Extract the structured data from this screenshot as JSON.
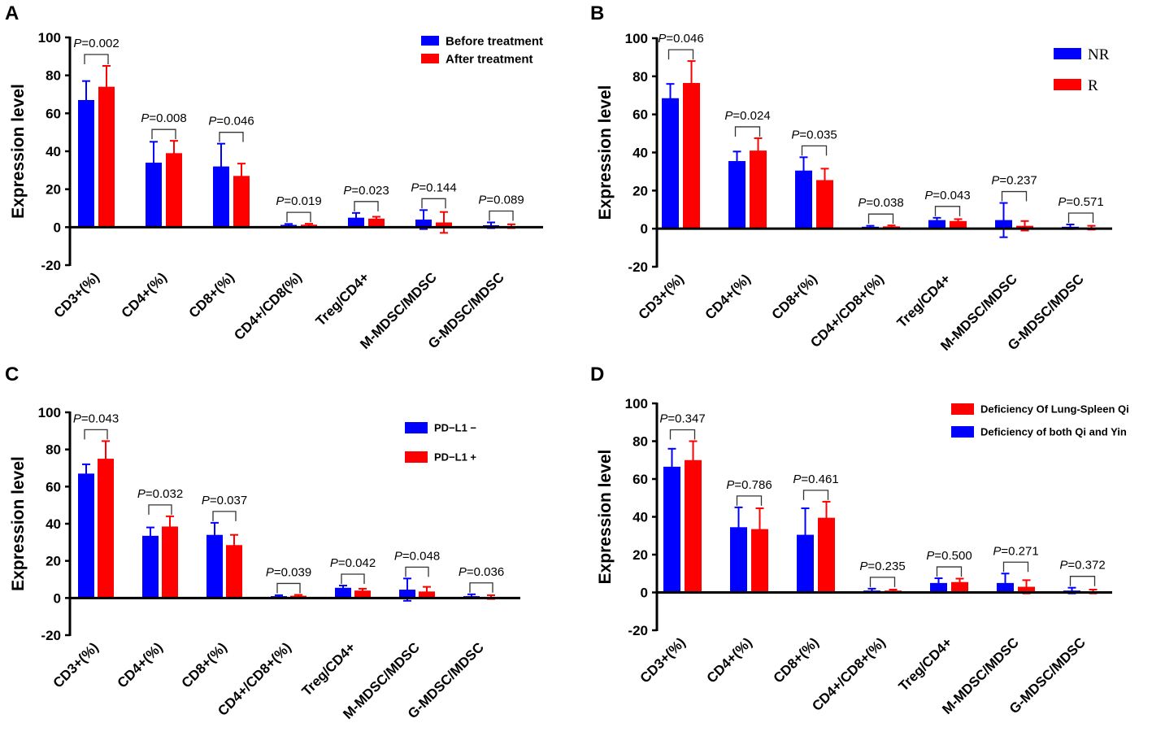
{
  "panels": [
    {
      "letter": "A",
      "ylabel": "Expression level",
      "legend_style": "bold",
      "legend": [
        {
          "label": "Before treatment",
          "color": "#0000ff"
        },
        {
          "label": "After treatment",
          "color": "#ff0000"
        }
      ],
      "p_prefix": "P",
      "p_values": [
        "=0.002",
        "=0.008",
        "=0.046",
        "=0.019",
        "=0.023",
        "=0.144",
        "=0.089"
      ]
    },
    {
      "letter": "B",
      "ylabel": "Expression level",
      "legend_style": "serif",
      "legend": [
        {
          "label": "NR",
          "color": "#0000ff"
        },
        {
          "label": "R",
          "color": "#ff0000"
        }
      ],
      "p_prefix": "P",
      "p_values": [
        "=0.046",
        "=0.024",
        "=0.035",
        "=0.038",
        "=0.043",
        "=0.237",
        "=0.571"
      ]
    },
    {
      "letter": "C",
      "ylabel": "Expression level",
      "legend_style": "small",
      "legend": [
        {
          "label": "PD−L1 −",
          "color": "#0000ff"
        },
        {
          "label": "PD−L1 +",
          "color": "#ff0000"
        }
      ],
      "p_prefix": "P",
      "p_values": [
        "=0.043",
        "=0.032",
        "=0.037",
        "=0.039",
        "=0.042",
        "=0.048",
        "=0.036"
      ]
    },
    {
      "letter": "D",
      "ylabel": "Expression level",
      "legend_style": "bold",
      "legend": [
        {
          "label": "Deficiency Of Lung-Spleen Qi",
          "color": "#ff0000"
        },
        {
          "label": "Deficiency of both Qi and Yin",
          "color": "#0000ff"
        }
      ],
      "p_prefix": "P",
      "p_values": [
        "=0.347",
        "=0.786",
        "=0.461",
        "=0.235",
        "=0.500",
        "=0.271",
        "=0.372"
      ]
    }
  ],
  "chart_data": [
    {
      "type": "bar",
      "panel": "A",
      "title": "",
      "xlabel": "",
      "ylabel": "Expression level",
      "ylim": [
        -20,
        100
      ],
      "yticks": [
        -20,
        0,
        20,
        40,
        60,
        80,
        100
      ],
      "categories": [
        "CD3+(%)",
        "CD4+(%)",
        "CD8+(%)",
        "CD4+/CD8(%)",
        "Treg/CD4+",
        "M-MDSC/MDSC",
        "G-MDSC/MDSC"
      ],
      "series": [
        {
          "name": "Before treatment",
          "color": "#0000ff",
          "values": [
            67,
            34,
            32,
            1.2,
            5,
            4,
            1
          ],
          "errors": [
            10,
            11,
            12,
            0.5,
            2.5,
            5,
            1.5
          ]
        },
        {
          "name": "After treatment",
          "color": "#ff0000",
          "values": [
            74,
            39,
            27,
            1.3,
            4.5,
            2.5,
            0.5
          ],
          "errors": [
            11,
            6.5,
            6.5,
            0.5,
            1,
            5.5,
            1
          ]
        }
      ]
    },
    {
      "type": "bar",
      "panel": "B",
      "title": "",
      "xlabel": "",
      "ylabel": "Expression level",
      "ylim": [
        -20,
        100
      ],
      "yticks": [
        -20,
        0,
        20,
        40,
        60,
        80,
        100
      ],
      "categories": [
        "CD3+(%)",
        "CD4+(%)",
        "CD8+(%)",
        "CD4+/CD8+(%)",
        "Treg/CD4+",
        "M-MDSC/MDSC",
        "G-MDSC/MDSC"
      ],
      "series": [
        {
          "name": "NR",
          "color": "#0000ff",
          "values": [
            68.5,
            35.5,
            30.5,
            1,
            4.5,
            4.5,
            1
          ],
          "errors": [
            7.5,
            5,
            7,
            0.5,
            1.2,
            9,
            1.2
          ]
        },
        {
          "name": "R",
          "color": "#ff0000",
          "values": [
            76.5,
            41,
            25.5,
            1.2,
            4,
            1.5,
            0.5
          ],
          "errors": [
            11.5,
            6.5,
            6,
            0.5,
            1,
            2.5,
            1
          ]
        }
      ]
    },
    {
      "type": "bar",
      "panel": "C",
      "title": "",
      "xlabel": "",
      "ylabel": "Expression level",
      "ylim": [
        -20,
        100
      ],
      "yticks": [
        -20,
        0,
        20,
        40,
        60,
        80,
        100
      ],
      "categories": [
        "CD3+(%)",
        "CD4+(%)",
        "CD8+(%)",
        "CD4+/CD8+(%)",
        "Treg/CD4+",
        "M-MDSC/MDSC",
        "G-MDSC/MDSC"
      ],
      "series": [
        {
          "name": "PD−L1 −",
          "color": "#0000ff",
          "values": [
            67,
            33.5,
            34,
            1,
            5.5,
            4.5,
            1
          ],
          "errors": [
            5,
            4.5,
            6.5,
            0.5,
            1.2,
            6,
            1
          ]
        },
        {
          "name": "PD−L1 +",
          "color": "#ff0000",
          "values": [
            75,
            38.5,
            28.5,
            1.2,
            4,
            3.5,
            0.5
          ],
          "errors": [
            9.5,
            5.5,
            5.5,
            0.5,
            1,
            2.5,
            1
          ]
        }
      ]
    },
    {
      "type": "bar",
      "panel": "D",
      "title": "",
      "xlabel": "",
      "ylabel": "Expression level",
      "ylim": [
        -20,
        100
      ],
      "yticks": [
        -20,
        0,
        20,
        40,
        60,
        80,
        100
      ],
      "categories": [
        "CD3+(%)",
        "CD4+(%)",
        "CD8+(%)",
        "CD4+/CD8+(%)",
        "Treg/CD4+",
        "M-MDSC/MDSC",
        "G-MDSC/MDSC"
      ],
      "series": [
        {
          "name": "Deficiency of both Qi and Yin",
          "color": "#0000ff",
          "values": [
            66.5,
            34.5,
            30.5,
            1,
            5,
            5,
            1
          ],
          "errors": [
            9.5,
            10.5,
            14,
            1,
            2.5,
            5,
            1.5
          ]
        },
        {
          "name": "Deficiency Of Lung-Spleen Qi",
          "color": "#ff0000",
          "values": [
            70,
            33.5,
            39.5,
            1,
            5.5,
            3,
            0.5
          ],
          "errors": [
            10,
            11,
            8.5,
            0.5,
            1.8,
            3.5,
            1
          ]
        }
      ]
    }
  ]
}
